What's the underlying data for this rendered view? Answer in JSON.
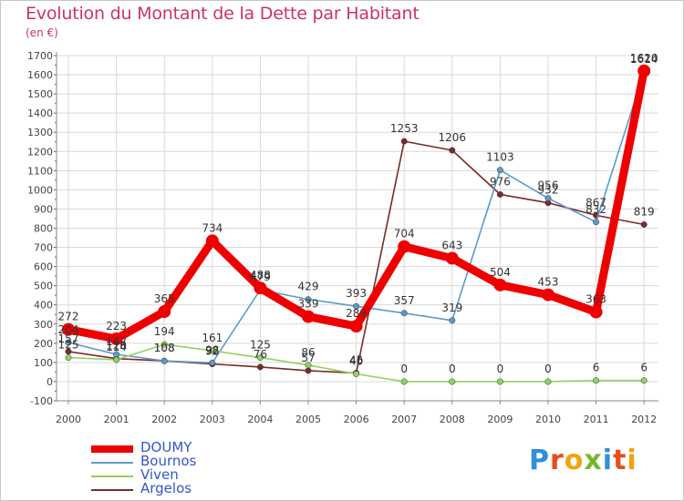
{
  "header": {
    "title": "Evolution du Montant de la Dette par Habitant",
    "subtitle": "(en €)"
  },
  "colors": {
    "title": "#cc3366",
    "axis_text": "#444444",
    "grid": "#d9d9d9"
  },
  "logo": {
    "letters": [
      "P",
      "r",
      "o",
      "x",
      "i",
      "t",
      "i"
    ],
    "colors": [
      "#2f8fd8",
      "#e84d1c",
      "#f2a20c",
      "#76b82a",
      "#2f8fd8",
      "#e84d1c",
      "#f2a20c"
    ]
  },
  "chart_data": {
    "type": "line",
    "title": "Evolution du Montant de la Dette par Habitant",
    "subtitle": "(en €)",
    "xlabel": "",
    "ylabel": "",
    "ylim": [
      -100,
      1700
    ],
    "yticks": [
      -100,
      0,
      100,
      200,
      300,
      400,
      500,
      600,
      700,
      800,
      900,
      1000,
      1100,
      1200,
      1300,
      1400,
      1500,
      1600,
      1700
    ],
    "grid": true,
    "legend_position": "bottom-left",
    "x": [
      "2000",
      "2001",
      "2002",
      "2003",
      "2004",
      "2005",
      "2006",
      "2007",
      "2008",
      "2009",
      "2010",
      "2011",
      "2012"
    ],
    "series": [
      {
        "name": "DOUMY",
        "color": "#ee0000",
        "values": [
          272,
          223,
          365,
          734,
          488,
          339,
          289,
          704,
          643,
          504,
          453,
          363,
          1620
        ],
        "labels": [
          "272",
          "223",
          "365",
          "734",
          "488",
          "339",
          "289",
          "704",
          "643",
          "504",
          "453",
          "363",
          "1620"
        ]
      },
      {
        "name": "Bournos",
        "color": "#5d9bc9",
        "values": [
          204,
          142,
          108,
          98,
          479,
          429,
          393,
          357,
          319,
          1103,
          956,
          832,
          1614
        ],
        "labels": [
          "204",
          "142",
          "108",
          "98",
          "479",
          "429",
          "393",
          "357",
          "319",
          "1103",
          "956",
          "832",
          "1614"
        ]
      },
      {
        "name": "Viven",
        "color": "#8fd362",
        "values": [
          125,
          114,
          194,
          161,
          125,
          86,
          40,
          0,
          0,
          0,
          0,
          6,
          6
        ],
        "labels": [
          "125",
          "114",
          "194",
          "161",
          "125",
          "86",
          "40",
          "0",
          "0",
          "0",
          "0",
          "6",
          "6"
        ]
      },
      {
        "name": "Argelos",
        "color": "#7a2a2a",
        "values": [
          157,
          120,
          108,
          92,
          76,
          57,
          45,
          1253,
          1206,
          976,
          932,
          867,
          819
        ],
        "labels": [
          "157",
          "120",
          "108",
          "92",
          "76",
          "57",
          "45",
          "1253",
          "1206",
          "976",
          "932",
          "867",
          "819"
        ]
      }
    ]
  }
}
